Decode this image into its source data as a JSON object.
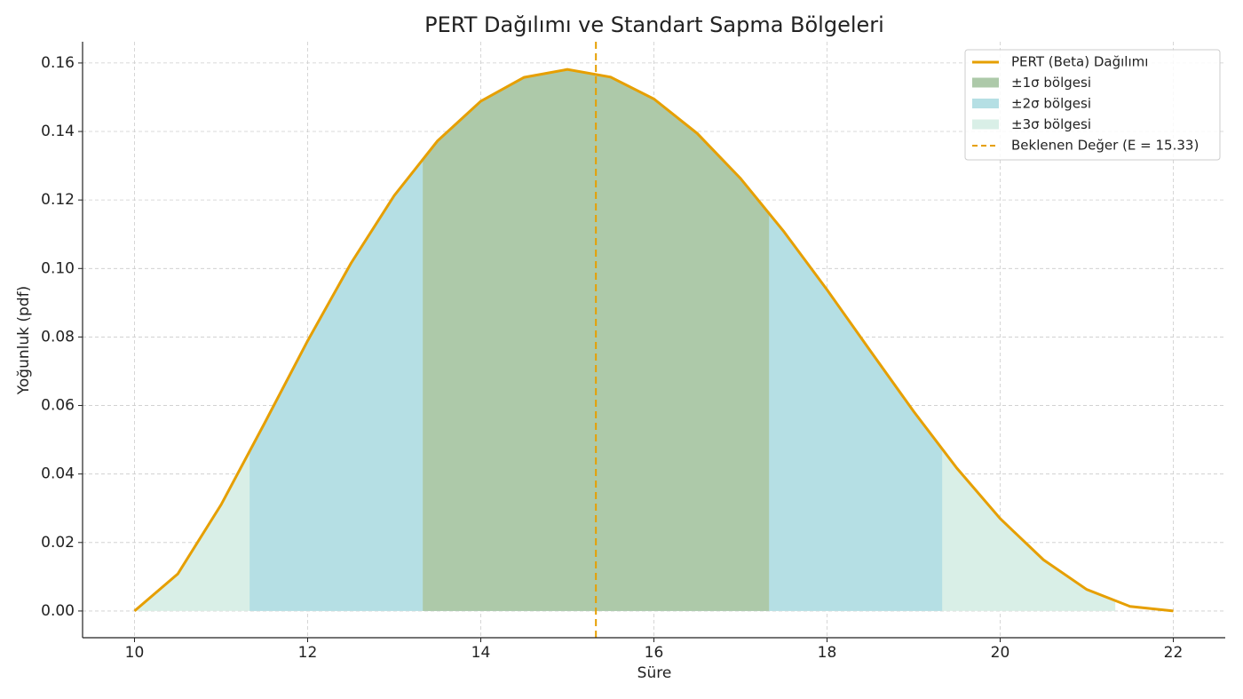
{
  "chart_data": {
    "type": "line",
    "title": "PERT Dağılımı ve Standart Sapma Bölgeleri",
    "xlabel": "Süre",
    "ylabel": "Yoğunluk (pdf)",
    "x": [
      10,
      10.5,
      11,
      11.5,
      12,
      12.5,
      13,
      13.5,
      14,
      14.5,
      15,
      15.5,
      16,
      16.5,
      17,
      17.5,
      18,
      18.5,
      19,
      19.5,
      20,
      20.5,
      21,
      21.5,
      22
    ],
    "series": [
      {
        "name": "PERT (Beta) Dağılımı",
        "color": "#e69f00",
        "values": [
          0,
          0.01084,
          0.03102,
          0.05473,
          0.07888,
          0.1015,
          0.12129,
          0.13724,
          0.14884,
          0.1558,
          0.15811,
          0.15589,
          0.14951,
          0.13945,
          0.12631,
          0.11082,
          0.09378,
          0.07596,
          0.05829,
          0.04169,
          0.02698,
          0.01495,
          0.00628,
          0.00134,
          0
        ]
      }
    ],
    "regions": [
      {
        "name": "±1σ bölgesi",
        "color": "#adc9a9",
        "x": [
          13.33,
          17.33
        ]
      },
      {
        "name": "±2σ bölgesi",
        "color": "#b5dfe4",
        "x": [
          11.33,
          19.33
        ]
      },
      {
        "name": "±3σ bölgesi",
        "color": "#d9efe7",
        "x": [
          9.33,
          21.33
        ]
      }
    ],
    "expected": {
      "value": 15.33,
      "label": "Beklenen Değer (E = 15.33)",
      "color": "#e69f00"
    },
    "xlim": [
      9.4,
      22.6
    ],
    "ylim": [
      -0.0078,
      0.1662
    ],
    "xticks": [
      10,
      12,
      14,
      16,
      18,
      20,
      22
    ],
    "yticks": [
      {
        "value": 0,
        "label": "0.00"
      },
      {
        "value": 0.02,
        "label": "0.02"
      },
      {
        "value": 0.04,
        "label": "0.04"
      },
      {
        "value": 0.06,
        "label": "0.06"
      },
      {
        "value": 0.08,
        "label": "0.08"
      },
      {
        "value": 0.1,
        "label": "0.10"
      },
      {
        "value": 0.12,
        "label": "0.12"
      },
      {
        "value": 0.14,
        "label": "0.14"
      },
      {
        "value": 0.16,
        "label": "0.16"
      }
    ],
    "grid": true,
    "legend": "upper right"
  }
}
